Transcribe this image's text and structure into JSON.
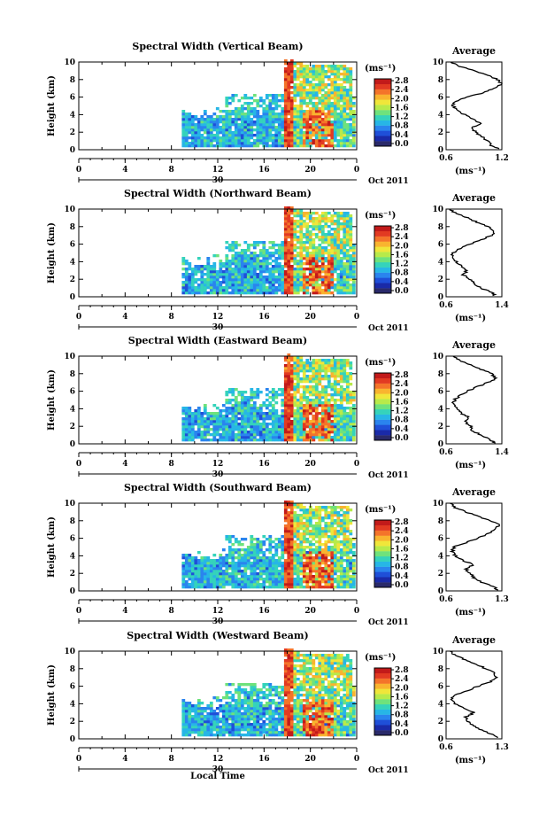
{
  "figure": {
    "xlabel": "Local Time",
    "time_ticks": [
      "0",
      "4",
      "8",
      "12",
      "16",
      "20",
      "0"
    ],
    "date_day": "30",
    "date_label": "Oct 2011",
    "ylabel": "Height (km)",
    "height_ticks": [
      "0",
      "2",
      "4",
      "6",
      "8",
      "10"
    ],
    "colorbar": {
      "unit": "(ms⁻¹)",
      "ticks": [
        "2.8",
        "2.4",
        "2.0",
        "1.6",
        "1.2",
        "0.8",
        "0.4",
        "0.0"
      ],
      "colors": [
        "#2a2a6a",
        "#1a2aa8",
        "#1f4fd8",
        "#2a84ee",
        "#27b6e6",
        "#35d3bb",
        "#6fe27c",
        "#b8ea4a",
        "#f0e63a",
        "#f9b42f",
        "#f4742a",
        "#e23a22",
        "#c21a1a"
      ]
    },
    "profile_title": "Average",
    "profile_xlabel": "(ms⁻¹)"
  },
  "chart_data": [
    {
      "type": "heatmap",
      "title": "Spectral Width (Vertical Beam)",
      "xlabel": "Local Time",
      "ylabel": "Height (km)",
      "xlim": [
        0,
        24
      ],
      "ylim": [
        0,
        10
      ],
      "clim": [
        0.0,
        3.0
      ],
      "colorbar_label": "(ms⁻¹)",
      "data_start_hour": 8.9,
      "regions": [
        {
          "t": [
            8.9,
            17.5
          ],
          "h": [
            0.5,
            4.0
          ],
          "value": 0.9
        },
        {
          "t": [
            17.5,
            18.4
          ],
          "h": [
            0.3,
            10.0
          ],
          "value": 2.8
        },
        {
          "t": [
            18.4,
            23.5
          ],
          "h": [
            4.5,
            9.8
          ],
          "value": 1.6
        },
        {
          "t": [
            19.3,
            21.8
          ],
          "h": [
            0.5,
            4.5
          ],
          "value": 2.6
        }
      ],
      "profile": {
        "title": "Average",
        "xlabel": "(ms⁻¹)",
        "xlim": [
          0.6,
          1.2
        ],
        "xticks": [
          "0.6",
          "1.2"
        ],
        "ylim": [
          0,
          10
        ],
        "points": [
          [
            1.18,
            0.1
          ],
          [
            1.08,
            0.5
          ],
          [
            1.05,
            1.0
          ],
          [
            0.98,
            1.5
          ],
          [
            0.92,
            2.0
          ],
          [
            0.88,
            2.5
          ],
          [
            0.97,
            3.0
          ],
          [
            0.9,
            3.5
          ],
          [
            0.8,
            4.0
          ],
          [
            0.72,
            4.5
          ],
          [
            0.67,
            5.0
          ],
          [
            0.7,
            5.5
          ],
          [
            0.82,
            6.0
          ],
          [
            1.0,
            6.5
          ],
          [
            1.12,
            7.0
          ],
          [
            1.2,
            7.5
          ],
          [
            1.15,
            8.0
          ],
          [
            1.05,
            8.5
          ],
          [
            0.9,
            9.0
          ],
          [
            0.75,
            9.5
          ],
          [
            0.65,
            10.0
          ]
        ]
      }
    },
    {
      "type": "heatmap",
      "title": "Spectral Width (Northward Beam)",
      "xlabel": "Local Time",
      "ylabel": "Height (km)",
      "xlim": [
        0,
        24
      ],
      "ylim": [
        0,
        10
      ],
      "clim": [
        0.0,
        3.0
      ],
      "colorbar_label": "(ms⁻¹)",
      "data_start_hour": 8.9,
      "regions": [
        {
          "t": [
            8.9,
            17.5
          ],
          "h": [
            0.5,
            4.0
          ],
          "value": 0.9
        },
        {
          "t": [
            17.5,
            18.4
          ],
          "h": [
            0.3,
            10.0
          ],
          "value": 2.8
        },
        {
          "t": [
            18.4,
            23.5
          ],
          "h": [
            4.5,
            9.8
          ],
          "value": 1.6
        },
        {
          "t": [
            19.3,
            21.8
          ],
          "h": [
            0.5,
            4.5
          ],
          "value": 2.6
        }
      ],
      "profile": {
        "title": "Average",
        "xlabel": "(ms⁻¹)",
        "xlim": [
          0.6,
          1.4
        ],
        "xticks": [
          "0.6",
          "1.4"
        ],
        "ylim": [
          0,
          10
        ],
        "points": [
          [
            1.3,
            0.1
          ],
          [
            1.25,
            0.5
          ],
          [
            1.1,
            1.0
          ],
          [
            1.0,
            1.5
          ],
          [
            0.95,
            2.0
          ],
          [
            0.85,
            2.5
          ],
          [
            0.9,
            3.0
          ],
          [
            0.82,
            3.5
          ],
          [
            0.75,
            4.0
          ],
          [
            0.68,
            4.5
          ],
          [
            0.7,
            5.0
          ],
          [
            0.8,
            5.5
          ],
          [
            0.95,
            6.0
          ],
          [
            1.1,
            6.5
          ],
          [
            1.25,
            7.0
          ],
          [
            1.3,
            7.5
          ],
          [
            1.2,
            8.0
          ],
          [
            1.05,
            8.5
          ],
          [
            0.9,
            9.0
          ],
          [
            0.75,
            9.5
          ],
          [
            0.65,
            10.0
          ]
        ]
      }
    },
    {
      "type": "heatmap",
      "title": "Spectral Width (Eastward Beam)",
      "xlabel": "Local Time",
      "ylabel": "Height (km)",
      "xlim": [
        0,
        24
      ],
      "ylim": [
        0,
        10
      ],
      "clim": [
        0.0,
        3.0
      ],
      "colorbar_label": "(ms⁻¹)",
      "data_start_hour": 8.9,
      "regions": [
        {
          "t": [
            8.9,
            17.5
          ],
          "h": [
            0.5,
            4.0
          ],
          "value": 0.9
        },
        {
          "t": [
            17.5,
            18.4
          ],
          "h": [
            0.3,
            10.0
          ],
          "value": 2.8
        },
        {
          "t": [
            18.4,
            23.5
          ],
          "h": [
            4.5,
            9.8
          ],
          "value": 1.6
        },
        {
          "t": [
            19.3,
            21.8
          ],
          "h": [
            0.5,
            4.5
          ],
          "value": 2.6
        }
      ],
      "profile": {
        "title": "Average",
        "xlabel": "(ms⁻¹)",
        "xlim": [
          0.6,
          1.4
        ],
        "xticks": [
          "0.6",
          "1.4"
        ],
        "ylim": [
          0,
          10
        ],
        "points": [
          [
            1.3,
            0.1
          ],
          [
            1.22,
            0.5
          ],
          [
            1.1,
            1.0
          ],
          [
            0.98,
            1.5
          ],
          [
            0.95,
            2.0
          ],
          [
            0.88,
            2.5
          ],
          [
            0.92,
            3.0
          ],
          [
            0.82,
            3.5
          ],
          [
            0.75,
            4.0
          ],
          [
            0.7,
            4.5
          ],
          [
            0.72,
            5.0
          ],
          [
            0.8,
            5.5
          ],
          [
            0.9,
            6.0
          ],
          [
            1.05,
            6.5
          ],
          [
            1.2,
            7.0
          ],
          [
            1.32,
            7.5
          ],
          [
            1.25,
            8.0
          ],
          [
            1.1,
            8.5
          ],
          [
            0.95,
            9.0
          ],
          [
            0.8,
            9.5
          ],
          [
            0.7,
            10.0
          ]
        ]
      }
    },
    {
      "type": "heatmap",
      "title": "Spectral Width (Southward Beam)",
      "xlabel": "Local Time",
      "ylabel": "Height (km)",
      "xlim": [
        0,
        24
      ],
      "ylim": [
        0,
        10
      ],
      "clim": [
        0.0,
        3.0
      ],
      "colorbar_label": "(ms⁻¹)",
      "data_start_hour": 8.9,
      "regions": [
        {
          "t": [
            8.9,
            17.5
          ],
          "h": [
            0.5,
            4.0
          ],
          "value": 0.9
        },
        {
          "t": [
            17.5,
            18.4
          ],
          "h": [
            0.3,
            10.0
          ],
          "value": 2.8
        },
        {
          "t": [
            18.4,
            23.5
          ],
          "h": [
            4.5,
            9.8
          ],
          "value": 1.6
        },
        {
          "t": [
            19.3,
            21.8
          ],
          "h": [
            0.5,
            4.5
          ],
          "value": 2.6
        }
      ],
      "profile": {
        "title": "Average",
        "xlabel": "(ms⁻¹)",
        "xlim": [
          0.6,
          1.3
        ],
        "xticks": [
          "0.6",
          "1.3"
        ],
        "ylim": [
          0,
          10
        ],
        "points": [
          [
            1.25,
            0.1
          ],
          [
            1.2,
            0.5
          ],
          [
            1.05,
            1.0
          ],
          [
            0.95,
            1.5
          ],
          [
            0.9,
            2.0
          ],
          [
            0.85,
            2.5
          ],
          [
            0.95,
            3.0
          ],
          [
            0.8,
            3.5
          ],
          [
            0.72,
            4.0
          ],
          [
            0.68,
            4.5
          ],
          [
            0.7,
            5.0
          ],
          [
            0.85,
            5.5
          ],
          [
            1.0,
            6.0
          ],
          [
            1.12,
            6.5
          ],
          [
            1.2,
            7.0
          ],
          [
            1.28,
            7.5
          ],
          [
            1.15,
            8.0
          ],
          [
            1.0,
            8.5
          ],
          [
            0.85,
            9.0
          ],
          [
            0.72,
            9.5
          ],
          [
            0.65,
            10.0
          ]
        ]
      }
    },
    {
      "type": "heatmap",
      "title": "Spectral Width (Westward Beam)",
      "xlabel": "Local Time",
      "ylabel": "Height (km)",
      "xlim": [
        0,
        24
      ],
      "ylim": [
        0,
        10
      ],
      "clim": [
        0.0,
        3.0
      ],
      "colorbar_label": "(ms⁻¹)",
      "data_start_hour": 8.9,
      "regions": [
        {
          "t": [
            8.9,
            17.5
          ],
          "h": [
            0.5,
            4.0
          ],
          "value": 0.9
        },
        {
          "t": [
            17.5,
            18.4
          ],
          "h": [
            0.3,
            10.0
          ],
          "value": 2.8
        },
        {
          "t": [
            18.4,
            23.5
          ],
          "h": [
            4.5,
            9.8
          ],
          "value": 1.6
        },
        {
          "t": [
            19.3,
            21.8
          ],
          "h": [
            0.5,
            4.5
          ],
          "value": 2.6
        }
      ],
      "profile": {
        "title": "Average",
        "xlabel": "(ms⁻¹)",
        "xlim": [
          0.6,
          1.3
        ],
        "xticks": [
          "0.6",
          "1.3"
        ],
        "ylim": [
          0,
          10
        ],
        "points": [
          [
            1.25,
            0.1
          ],
          [
            1.18,
            0.5
          ],
          [
            1.05,
            1.0
          ],
          [
            0.95,
            1.5
          ],
          [
            0.88,
            2.0
          ],
          [
            0.85,
            2.5
          ],
          [
            0.95,
            3.0
          ],
          [
            0.82,
            3.5
          ],
          [
            0.72,
            4.0
          ],
          [
            0.66,
            4.5
          ],
          [
            0.72,
            5.0
          ],
          [
            0.88,
            5.5
          ],
          [
            1.0,
            6.0
          ],
          [
            1.15,
            6.5
          ],
          [
            1.22,
            7.0
          ],
          [
            1.2,
            7.5
          ],
          [
            1.1,
            8.0
          ],
          [
            0.98,
            8.5
          ],
          [
            0.85,
            9.0
          ],
          [
            0.72,
            9.5
          ],
          [
            0.65,
            10.0
          ]
        ]
      }
    }
  ]
}
